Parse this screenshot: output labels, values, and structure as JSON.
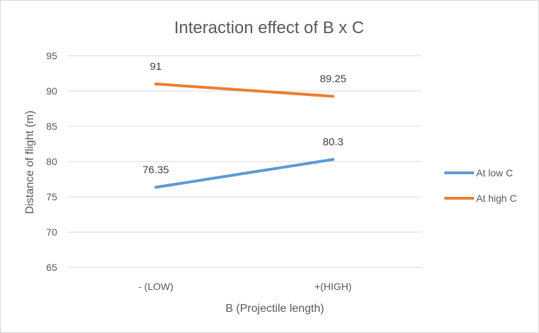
{
  "chart_data": {
    "type": "line",
    "title": "Interaction effect of B x C",
    "xlabel": "B (Projectile length)",
    "ylabel": "Distance of flight (m)",
    "categories": [
      "- (LOW)",
      "+(HIGH)"
    ],
    "ylim": [
      65,
      95
    ],
    "yticks": [
      65,
      70,
      75,
      80,
      85,
      90,
      95
    ],
    "grid": true,
    "legend_position": "right",
    "series": [
      {
        "name": "At low C",
        "values": [
          76.35,
          80.3
        ],
        "labels": [
          "76.35",
          "80.3"
        ],
        "color": "#5b9bd5"
      },
      {
        "name": "At high C",
        "values": [
          91,
          89.25
        ],
        "labels": [
          "91",
          "89.25"
        ],
        "color": "#ed7d31"
      }
    ]
  }
}
